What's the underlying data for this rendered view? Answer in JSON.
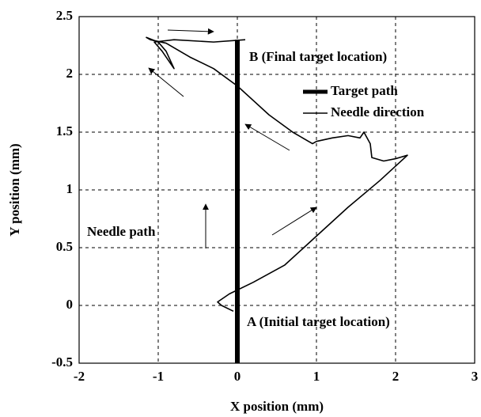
{
  "chart_data": {
    "type": "line",
    "xlabel": "X position (mm)",
    "ylabel": "Y position (mm)",
    "xlim": [
      -2,
      3
    ],
    "xticks": [
      -2,
      -1,
      0,
      1,
      2,
      3
    ],
    "ylim": [
      -0.5,
      2.5
    ],
    "yticks": [
      -0.5,
      0,
      0.5,
      1,
      1.5,
      2,
      2.5
    ],
    "grid": true,
    "annotations": [
      "B (Final target location)",
      "A (Initial target location)",
      "Needle path"
    ],
    "series": [
      {
        "name": "Target path",
        "color": "#000000",
        "x": [
          0,
          0
        ],
        "values": [
          -0.5,
          2.3
        ]
      },
      {
        "name": "Needle direction",
        "color": "#000000",
        "x": [
          -0.05,
          -0.2,
          -0.25,
          -0.1,
          0.2,
          0.6,
          1.0,
          1.4,
          1.8,
          2.15,
          2.0,
          1.85,
          1.7,
          1.68,
          1.6,
          1.55,
          1.4,
          1.2,
          1.0,
          0.95,
          0.7,
          0.4,
          0.0,
          -0.3,
          -0.6,
          -0.9,
          -1.1,
          -1.15,
          -1.0,
          -0.9,
          -0.8,
          -0.85,
          -0.95,
          -1.05,
          -0.8,
          -0.3,
          0.1
        ],
        "values": [
          -0.05,
          0.0,
          0.03,
          0.1,
          0.2,
          0.35,
          0.6,
          0.85,
          1.08,
          1.3,
          1.27,
          1.25,
          1.28,
          1.4,
          1.5,
          1.45,
          1.47,
          1.45,
          1.42,
          1.4,
          1.5,
          1.65,
          1.9,
          2.05,
          2.15,
          2.27,
          2.3,
          2.32,
          2.28,
          2.2,
          2.05,
          2.1,
          2.2,
          2.28,
          2.3,
          2.28,
          2.3
        ]
      }
    ]
  }
}
